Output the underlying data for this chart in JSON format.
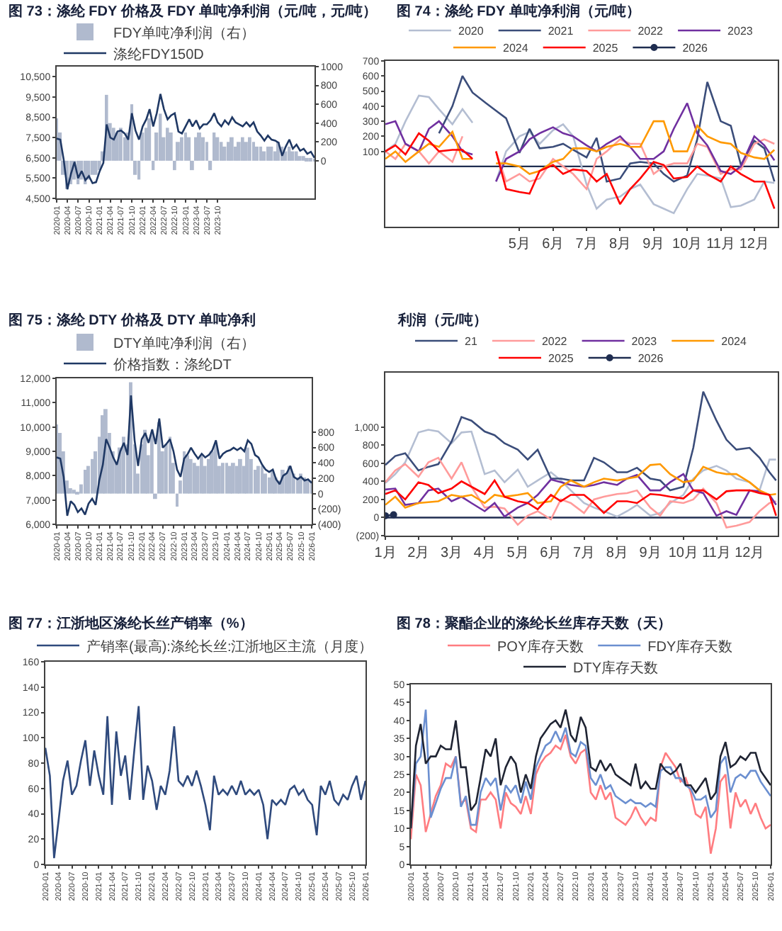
{
  "chart_data": [
    {
      "type": "line",
      "title": "图 73：涤纶 FDY 价格及 FDY 单吨净利润（元/吨，元/吨）",
      "legend": "top left",
      "x": [
        "2020-01",
        "2020-02",
        "2020-03",
        "2020-04",
        "2020-05",
        "2020-06",
        "2020-07",
        "2020-08",
        "2020-09",
        "2020-10",
        "2020-11",
        "2020-12",
        "2021-01",
        "2021-02",
        "2021-03",
        "2021-04",
        "2021-05",
        "2021-06",
        "2021-07",
        "2021-08",
        "2021-09",
        "2021-10",
        "2021-11",
        "2021-12",
        "2022-01",
        "2022-02",
        "2022-03",
        "2022-04",
        "2022-05",
        "2022-06",
        "2022-07",
        "2022-08",
        "2022-09",
        "2022-10",
        "2022-11",
        "2022-12",
        "2023-01",
        "2023-02",
        "2023-03",
        "2023-04",
        "2023-05",
        "2023-06",
        "2023-07",
        "2023-08",
        "2023-09",
        "2023-10",
        "2023-11",
        "2023-12",
        "2024-01",
        "2024-02",
        "2024-03",
        "2024-04",
        "2024-05",
        "2024-06",
        "2024-07",
        "2024-08",
        "2024-09",
        "2024-10",
        "2024-11",
        "2024-12",
        "2025-01",
        "2025-02",
        "2025-03",
        "2025-04",
        "2025-05",
        "2025-06",
        "2025-07",
        "2025-08",
        "2025-09",
        "2025-10",
        "2025-11",
        "2025-12",
        "2026-01"
      ],
      "xlim": [
        "2020-01",
        "2026-01"
      ],
      "xticks": [
        "2020-01",
        "2020-04",
        "2020-07",
        "2020-10",
        "2021-01",
        "2021-04",
        "2021-07",
        "2021-10",
        "2022-01",
        "2022-04",
        "2022-07",
        "2022-10",
        "2023-01",
        "2023-04",
        "2023-07",
        "2023-10"
      ],
      "ylim": [
        4500,
        11000
      ],
      "yticks": [
        {
          "value": 4500,
          "label": "4,500"
        },
        {
          "value": 5500,
          "label": "5,500"
        },
        {
          "value": 6500,
          "label": "6,500"
        },
        {
          "value": 7500,
          "label": "7,500"
        },
        {
          "value": 8500,
          "label": "8,500"
        },
        {
          "value": 9500,
          "label": "9,500"
        },
        {
          "value": 10500,
          "label": "10,500"
        }
      ],
      "y2lim": [
        -400,
        1000
      ],
      "y2ticks": [
        0,
        200,
        400,
        600,
        800,
        1000
      ],
      "series": [
        {
          "name": "FDY单吨净利润（右）",
          "type": "bar",
          "axis": "y2",
          "color": "#b0bace",
          "values": [
            450,
            300,
            -150,
            -300,
            -250,
            -200,
            -250,
            -200,
            -250,
            -200,
            -150,
            -150,
            -100,
            100,
            700,
            400,
            350,
            300,
            350,
            250,
            300,
            600,
            -150,
            -200,
            300,
            350,
            450,
            -100,
            300,
            500,
            250,
            350,
            300,
            -100,
            200,
            250,
            300,
            250,
            -100,
            250,
            300,
            250,
            200,
            -100,
            300,
            250,
            200,
            150,
            200,
            250,
            150,
            200,
            250,
            200,
            250,
            200,
            150,
            150,
            100,
            150,
            150,
            100,
            200,
            150,
            100,
            150,
            100,
            100,
            50,
            50,
            30,
            30,
            20
          ]
        },
        {
          "name": "涤纶FDY150D",
          "color": "#1f3864",
          "values": [
            7450,
            7400,
            6400,
            4950,
            5700,
            6300,
            5500,
            5850,
            5400,
            5600,
            5250,
            5300,
            5850,
            6250,
            8150,
            7500,
            7400,
            7800,
            7850,
            7700,
            7400,
            8700,
            7850,
            7400,
            8050,
            8400,
            8900,
            8050,
            8700,
            9650,
            8900,
            8400,
            8600,
            8700,
            7800,
            7700,
            8050,
            8400,
            8050,
            8350,
            7950,
            8150,
            8150,
            8350,
            8700,
            8250,
            8050,
            8350,
            8150,
            8500,
            8250,
            8150,
            8050,
            8250,
            8050,
            8250,
            7800,
            7600,
            7350,
            7600,
            7400,
            7350,
            7250,
            6600,
            7050,
            7400,
            6950,
            7150,
            6850,
            6950,
            6700,
            6800,
            6500
          ]
        }
      ]
    },
    {
      "type": "line",
      "title": "图 74：涤纶 FDY 单吨净利润（元/吨）",
      "legend": "top",
      "x": [
        1,
        1.3,
        1.6,
        2,
        2.3,
        2.6,
        3,
        3.3,
        3.6,
        4,
        4.3,
        4.6,
        5,
        5.3,
        5.6,
        6,
        6.3,
        6.6,
        7,
        7.3,
        7.6,
        8,
        8.3,
        8.6,
        9,
        9.3,
        9.6,
        10,
        10.3,
        10.6,
        11,
        11.3,
        11.6,
        12,
        12.3,
        12.6
      ],
      "xlim": [
        1,
        12.7
      ],
      "xticks": [
        {
          "value": 5,
          "label": "5月"
        },
        {
          "value": 6,
          "label": "6月"
        },
        {
          "value": 7,
          "label": "7月"
        },
        {
          "value": 8,
          "label": "8月"
        },
        {
          "value": 9,
          "label": "9月"
        },
        {
          "value": 10,
          "label": "10月"
        },
        {
          "value": 11,
          "label": "11月"
        },
        {
          "value": 12,
          "label": "12月"
        }
      ],
      "ylim": [
        -400,
        700
      ],
      "yticks": [
        100,
        200,
        300,
        400,
        500,
        600,
        700
      ],
      "ref_lines": [
        {
          "axis": "y",
          "value": 0,
          "color": "#1f2d50"
        }
      ],
      "series": [
        {
          "name": "2020",
          "color": "#b4bed2",
          "values": [
            100,
            150,
            300,
            470,
            460,
            380,
            280,
            380,
            290,
            null,
            -100,
            100,
            200,
            230,
            150,
            240,
            280,
            200,
            -120,
            -280,
            -220,
            -200,
            -150,
            -120,
            -250,
            -280,
            -310,
            -150,
            -50,
            -60,
            -80,
            -270,
            -260,
            -220,
            -100,
            -110
          ]
        },
        {
          "name": "2021",
          "color": "#3b4d7a",
          "values": [
            null,
            null,
            null,
            null,
            null,
            220,
            400,
            600,
            490,
            420,
            370,
            320,
            90,
            250,
            120,
            130,
            150,
            110,
            60,
            190,
            -100,
            -80,
            20,
            30,
            20,
            -50,
            -100,
            -60,
            180,
            560,
            300,
            270,
            10,
            170,
            120,
            -100
          ]
        },
        {
          "name": "2022",
          "color": "#ff9b9b",
          "values": [
            100,
            50,
            150,
            100,
            20,
            100,
            30,
            200,
            null,
            null,
            100,
            -100,
            -50,
            -100,
            -80,
            50,
            0,
            -50,
            -150,
            50,
            100,
            180,
            150,
            150,
            -50,
            0,
            20,
            20,
            150,
            130,
            -50,
            -20,
            -20,
            150,
            180,
            150
          ]
        },
        {
          "name": "2023",
          "color": "#7030a0",
          "values": [
            280,
            300,
            150,
            100,
            250,
            300,
            200,
            100,
            80,
            null,
            -100,
            50,
            100,
            180,
            220,
            260,
            220,
            200,
            140,
            100,
            150,
            200,
            130,
            50,
            50,
            100,
            250,
            420,
            220,
            140,
            -30,
            -50,
            0,
            200,
            140,
            40
          ]
        },
        {
          "name": "2024",
          "color": "#ff9900",
          "values": [
            50,
            100,
            30,
            100,
            150,
            130,
            230,
            50,
            50,
            null,
            20,
            20,
            0,
            -50,
            -30,
            30,
            50,
            120,
            120,
            100,
            130,
            150,
            130,
            130,
            300,
            300,
            100,
            100,
            270,
            200,
            160,
            150,
            90,
            60,
            50,
            110
          ]
        },
        {
          "name": "2025",
          "color": "#ff0000",
          "values": [
            100,
            140,
            80,
            220,
            170,
            100,
            110,
            110,
            50,
            null,
            100,
            -150,
            -170,
            -180,
            -30,
            10,
            -50,
            -20,
            -30,
            -100,
            -50,
            -250,
            -150,
            -80,
            30,
            10,
            -80,
            -70,
            0,
            -50,
            -100,
            0,
            -50,
            -100,
            -100,
            -280
          ]
        },
        {
          "name": "2026",
          "color": "#1f2d50",
          "marker": "circle",
          "values": [
            null,
            null,
            null,
            null,
            null,
            null,
            null,
            null,
            null,
            null,
            null,
            null,
            null,
            null,
            null,
            null,
            null,
            null,
            null,
            null,
            null,
            null,
            null,
            null,
            null,
            null,
            null,
            null,
            null,
            null,
            null,
            null,
            null,
            null,
            null,
            null
          ]
        }
      ]
    },
    {
      "type": "line",
      "title": "图 75：涤纶 DTY 价格及 DTY 单吨净利",
      "legend": "top left",
      "x": [
        "2020-01",
        "2020-02",
        "2020-03",
        "2020-04",
        "2020-05",
        "2020-06",
        "2020-07",
        "2020-08",
        "2020-09",
        "2020-10",
        "2020-11",
        "2020-12",
        "2021-01",
        "2021-02",
        "2021-03",
        "2021-04",
        "2021-05",
        "2021-06",
        "2021-07",
        "2021-08",
        "2021-09",
        "2021-10",
        "2021-11",
        "2021-12",
        "2022-01",
        "2022-02",
        "2022-03",
        "2022-04",
        "2022-05",
        "2022-06",
        "2022-07",
        "2022-08",
        "2022-09",
        "2022-10",
        "2022-11",
        "2022-12",
        "2023-01",
        "2023-02",
        "2023-03",
        "2023-04",
        "2023-05",
        "2023-06",
        "2023-07",
        "2023-08",
        "2023-09",
        "2023-10",
        "2023-11",
        "2023-12",
        "2024-01",
        "2024-02",
        "2024-03",
        "2024-04",
        "2024-05",
        "2024-06",
        "2024-07",
        "2024-08",
        "2024-09",
        "2024-10",
        "2024-11",
        "2024-12",
        "2025-01",
        "2025-02",
        "2025-03",
        "2025-04",
        "2025-05",
        "2025-06",
        "2025-07",
        "2025-08",
        "2025-09",
        "2025-10",
        "2025-11",
        "2025-12",
        "2026-01"
      ],
      "xlim": [
        "2020-01",
        "2026-01"
      ],
      "xticks": [
        "2020-01",
        "2020-04",
        "2020-07",
        "2020-10",
        "2021-01",
        "2021-04",
        "2021-07",
        "2021-10",
        "2022-01",
        "2022-04",
        "2022-07",
        "2022-10",
        "2023-01",
        "2023-04",
        "2023-07",
        "2023-10",
        "2024-01",
        "2024-04",
        "2024-07",
        "2024-10",
        "2025-01",
        "2025-04",
        "2025-07",
        "2025-10",
        "2026-01"
      ],
      "ylim": [
        6000,
        12000
      ],
      "yticks": [
        {
          "value": 6000,
          "label": "6,000"
        },
        {
          "value": 7000,
          "label": "7,000"
        },
        {
          "value": 8000,
          "label": "8,000"
        },
        {
          "value": 9000,
          "label": "9,000"
        },
        {
          "value": 10000,
          "label": "10,000"
        },
        {
          "value": 11000,
          "label": "11,000"
        },
        {
          "value": 12000,
          "label": "12,000"
        }
      ],
      "y2lim": [
        -400,
        1500
      ],
      "y2ticks": [
        {
          "value": -400,
          "label": "(400)"
        },
        {
          "value": -200,
          "label": "(200)"
        },
        0,
        200,
        400,
        600,
        800
      ],
      "series": [
        {
          "name": "DTY单吨净利润（右）",
          "type": "bar",
          "axis": "y2",
          "color": "#b0bace",
          "values": [
            900,
            790,
            550,
            170,
            70,
            50,
            20,
            120,
            310,
            360,
            450,
            550,
            740,
            1020,
            1100,
            790,
            550,
            400,
            600,
            740,
            640,
            1450,
            640,
            260,
            640,
            830,
            500,
            790,
            -70,
            930,
            550,
            640,
            740,
            400,
            -170,
            170,
            550,
            500,
            450,
            400,
            360,
            500,
            360,
            450,
            550,
            640,
            360,
            400,
            400,
            360,
            400,
            360,
            450,
            360,
            600,
            450,
            310,
            360,
            360,
            260,
            210,
            310,
            210,
            170,
            310,
            260,
            360,
            260,
            210,
            260,
            210,
            170,
            170
          ]
        },
        {
          "name": "价格指数：涤纶DT",
          "color": "#1f3864",
          "values": [
            8750,
            8700,
            7950,
            6350,
            6950,
            6800,
            6500,
            6650,
            6400,
            6850,
            7050,
            6800,
            7800,
            8450,
            9500,
            9150,
            8750,
            8450,
            9000,
            9350,
            8850,
            11300,
            9450,
            8400,
            9500,
            9750,
            9350,
            9900,
            9300,
            10350,
            9150,
            9300,
            9500,
            9000,
            8250,
            7950,
            8700,
            8900,
            9150,
            8900,
            8700,
            8900,
            8750,
            8850,
            9050,
            9450,
            8700,
            8900,
            9000,
            9050,
            9150,
            9050,
            9150,
            9000,
            9450,
            9300,
            8850,
            8750,
            8450,
            8250,
            8150,
            8250,
            7850,
            7650,
            8000,
            8100,
            8400,
            7950,
            7850,
            7950,
            7800,
            7850,
            7700
          ]
        }
      ]
    },
    {
      "type": "line",
      "title": "利润（元/吨）",
      "legend": "top",
      "x": [
        1,
        1.3,
        1.6,
        2,
        2.3,
        2.6,
        3,
        3.3,
        3.6,
        4,
        4.3,
        4.6,
        5,
        5.3,
        5.6,
        6,
        6.3,
        6.6,
        7,
        7.3,
        7.6,
        8,
        8.3,
        8.6,
        9,
        9.3,
        9.6,
        10,
        10.3,
        10.6,
        11,
        11.3,
        11.6,
        12,
        12.3,
        12.6,
        12.8
      ],
      "xlim": [
        1,
        12.85
      ],
      "xticks": [
        {
          "value": 1,
          "label": "1月"
        },
        {
          "value": 2,
          "label": "2月"
        },
        {
          "value": 3,
          "label": "3月"
        },
        {
          "value": 4,
          "label": "4月"
        },
        {
          "value": 5,
          "label": "5月"
        },
        {
          "value": 6,
          "label": "6月"
        },
        {
          "value": 7,
          "label": "7月"
        },
        {
          "value": 8,
          "label": "8月"
        },
        {
          "value": 9,
          "label": "9月"
        },
        {
          "value": 10,
          "label": "10月"
        },
        {
          "value": 11,
          "label": "11月"
        },
        {
          "value": 12,
          "label": "12月"
        }
      ],
      "ylim": [
        -200,
        1600
      ],
      "yticks": [
        {
          "value": -200,
          "label": "(200)"
        },
        0,
        200,
        400,
        600,
        800,
        {
          "value": 1000,
          "label": "1,000"
        }
      ],
      "ref_lines": [
        {
          "axis": "y",
          "value": 0,
          "color": "#1f2d50"
        }
      ],
      "series": [
        {
          "color": "#b4bed2",
          "values": [
            380,
            480,
            610,
            940,
            970,
            950,
            820,
            940,
            950,
            480,
            520,
            390,
            530,
            340,
            410,
            500,
            410,
            300,
            160,
            110,
            70,
            10,
            70,
            140,
            20,
            50,
            160,
            250,
            430,
            520,
            570,
            520,
            430,
            390,
            300,
            640,
            640
          ]
        },
        {
          "name": "21",
          "color": "#3b4d7a",
          "values": [
            580,
            680,
            710,
            520,
            560,
            590,
            840,
            1110,
            1070,
            950,
            910,
            820,
            750,
            640,
            750,
            430,
            430,
            410,
            410,
            660,
            610,
            500,
            500,
            550,
            430,
            410,
            300,
            340,
            770,
            1390,
            1070,
            860,
            750,
            770,
            660,
            500,
            410
          ]
        },
        {
          "name": "2022",
          "color": "#ff9b9b",
          "values": [
            390,
            520,
            590,
            450,
            610,
            660,
            430,
            610,
            340,
            110,
            120,
            100,
            -80,
            20,
            70,
            -20,
            200,
            160,
            50,
            200,
            230,
            260,
            270,
            300,
            110,
            20,
            180,
            160,
            200,
            320,
            160,
            -110,
            -90,
            -50,
            70,
            160,
            180
          ]
        },
        {
          "name": "2023",
          "color": "#7030a0",
          "values": [
            310,
            320,
            140,
            160,
            300,
            320,
            180,
            230,
            160,
            70,
            160,
            10,
            110,
            160,
            250,
            420,
            390,
            360,
            340,
            360,
            390,
            360,
            430,
            470,
            300,
            300,
            390,
            480,
            300,
            270,
            20,
            70,
            30,
            300,
            290,
            250,
            140
          ]
        },
        {
          "name": "2024",
          "color": "#ff9900",
          "values": [
            140,
            230,
            110,
            160,
            170,
            180,
            250,
            230,
            250,
            160,
            250,
            230,
            250,
            270,
            160,
            180,
            340,
            410,
            340,
            390,
            430,
            410,
            430,
            450,
            580,
            590,
            480,
            390,
            410,
            560,
            500,
            480,
            480,
            390,
            300,
            250,
            260
          ]
        },
        {
          "name": "2025",
          "color": "#ff0000",
          "values": [
            260,
            300,
            200,
            390,
            360,
            270,
            320,
            400,
            340,
            260,
            410,
            230,
            180,
            160,
            90,
            250,
            180,
            250,
            250,
            160,
            50,
            180,
            180,
            160,
            260,
            250,
            230,
            210,
            300,
            300,
            200,
            290,
            300,
            300,
            270,
            250,
            20
          ]
        },
        {
          "name": "2026",
          "color": "#1f2d50",
          "marker": "circle",
          "x": [
            1,
            1.25
          ],
          "values": [
            20,
            30
          ]
        }
      ]
    },
    {
      "type": "line",
      "title": "图 77：江浙地区涤纶长丝产销率（%）",
      "legend": "top",
      "x": [
        "2020-01",
        "2020-02",
        "2020-03",
        "2020-04",
        "2020-05",
        "2020-06",
        "2020-07",
        "2020-08",
        "2020-09",
        "2020-10",
        "2020-11",
        "2020-12",
        "2021-01",
        "2021-02",
        "2021-03",
        "2021-04",
        "2021-05",
        "2021-06",
        "2021-07",
        "2021-08",
        "2021-09",
        "2021-10",
        "2021-11",
        "2021-12",
        "2022-01",
        "2022-02",
        "2022-03",
        "2022-04",
        "2022-05",
        "2022-06",
        "2022-07",
        "2022-08",
        "2022-09",
        "2022-10",
        "2022-11",
        "2022-12",
        "2023-01",
        "2023-02",
        "2023-03",
        "2023-04",
        "2023-05",
        "2023-06",
        "2023-07",
        "2023-08",
        "2023-09",
        "2023-10",
        "2023-11",
        "2023-12",
        "2024-01",
        "2024-02",
        "2024-03",
        "2024-04",
        "2024-05",
        "2024-06",
        "2024-07",
        "2024-08",
        "2024-09",
        "2024-10",
        "2024-11",
        "2024-12",
        "2025-01",
        "2025-02",
        "2025-03",
        "2025-04",
        "2025-05",
        "2025-06",
        "2025-07",
        "2025-08",
        "2025-09",
        "2025-10",
        "2025-11",
        "2025-12",
        "2026-01"
      ],
      "xlim": [
        "2020-01",
        "2026-01"
      ],
      "xticks": [
        "2020-01",
        "2020-04",
        "2020-07",
        "2020-10",
        "2021-01",
        "2021-04",
        "2021-07",
        "2021-10",
        "2022-01",
        "2022-04",
        "2022-07",
        "2022-10",
        "2023-01",
        "2023-04",
        "2023-07",
        "2023-10",
        "2024-01",
        "2024-04",
        "2024-07",
        "2024-10",
        "2025-01",
        "2025-04",
        "2025-07",
        "2025-10",
        "2026-01"
      ],
      "ylim": [
        0,
        160
      ],
      "yticks": [
        0,
        20,
        40,
        60,
        80,
        100,
        120,
        140,
        160
      ],
      "series": [
        {
          "name": "产销率(最高):涤纶长丝:江浙地区主流（月度）",
          "color": "#2f4a7d",
          "values": [
            92,
            70,
            5,
            35,
            66,
            82,
            55,
            62,
            82,
            98,
            62,
            90,
            70,
            55,
            117,
            47,
            105,
            70,
            86,
            51,
            90,
            125,
            51,
            78,
            66,
            43,
            62,
            55,
            74,
            109,
            66,
            62,
            70,
            62,
            74,
            62,
            47,
            27,
            70,
            55,
            59,
            55,
            62,
            55,
            66,
            55,
            59,
            55,
            59,
            47,
            20,
            51,
            47,
            51,
            47,
            59,
            62,
            55,
            59,
            51,
            47,
            23,
            62,
            55,
            66,
            51,
            47,
            55,
            51,
            62,
            70,
            51,
            66
          ]
        }
      ]
    },
    {
      "type": "line",
      "title": "图 78：聚酯企业的涤纶长丝库存天数（天）",
      "legend": "top",
      "x": [
        "2020-01",
        "2020-02",
        "2020-03",
        "2020-04",
        "2020-05",
        "2020-06",
        "2020-07",
        "2020-08",
        "2020-09",
        "2020-10",
        "2020-11",
        "2020-12",
        "2021-01",
        "2021-02",
        "2021-03",
        "2021-04",
        "2021-05",
        "2021-06",
        "2021-07",
        "2021-08",
        "2021-09",
        "2021-10",
        "2021-11",
        "2021-12",
        "2022-01",
        "2022-02",
        "2022-03",
        "2022-04",
        "2022-05",
        "2022-06",
        "2022-07",
        "2022-08",
        "2022-09",
        "2022-10",
        "2022-11",
        "2022-12",
        "2023-01",
        "2023-02",
        "2023-03",
        "2023-04",
        "2023-05",
        "2023-06",
        "2023-07",
        "2023-08",
        "2023-09",
        "2023-10",
        "2023-11",
        "2023-12",
        "2024-01",
        "2024-02",
        "2024-03",
        "2024-04",
        "2024-05",
        "2024-06",
        "2024-07",
        "2024-08",
        "2024-09",
        "2024-10",
        "2024-11",
        "2024-12",
        "2025-01",
        "2025-02",
        "2025-03",
        "2025-04",
        "2025-05",
        "2025-06",
        "2025-07",
        "2025-08",
        "2025-09",
        "2025-10",
        "2025-11",
        "2025-12",
        "2026-01"
      ],
      "xlim": [
        "2020-01",
        "2026-01"
      ],
      "xticks": [
        "2020-01",
        "2020-04",
        "2020-07",
        "2020-10",
        "2021-01",
        "2021-04",
        "2021-07",
        "2021-10",
        "2022-01",
        "2022-04",
        "2022-07",
        "2022-10",
        "2023-01",
        "2023-04",
        "2023-07",
        "2023-10",
        "2024-01",
        "2024-04",
        "2024-07",
        "2024-10",
        "2025-01",
        "2025-04",
        "2025-07",
        "2025-10",
        "2026-01"
      ],
      "ylim": [
        0,
        50
      ],
      "yticks": [
        0,
        5,
        10,
        15,
        20,
        25,
        30,
        35,
        40,
        45,
        50
      ],
      "series": [
        {
          "name": "POY库存天数",
          "color": "#ff7c80",
          "values": [
            7,
            25,
            22,
            9,
            14,
            19,
            22,
            28,
            27,
            30,
            17,
            18,
            10,
            9,
            18,
            18,
            20,
            18,
            10,
            20,
            17,
            16,
            14,
            19,
            14,
            25,
            28,
            30,
            31,
            33,
            32,
            36,
            30,
            28,
            31,
            32,
            20,
            18,
            22,
            18,
            20,
            13,
            12,
            11,
            13,
            16,
            13,
            11,
            13,
            12,
            27,
            31,
            29,
            27,
            23,
            24,
            20,
            14,
            13,
            16,
            3,
            10,
            23,
            25,
            10,
            20,
            16,
            18,
            14,
            17,
            13,
            10,
            11
          ]
        },
        {
          "name": "FDY库存天数",
          "color": "#6b8fd0",
          "values": [
            10,
            28,
            30,
            43,
            13,
            17,
            21,
            24,
            24,
            30,
            16,
            19,
            11,
            11,
            20,
            24,
            22,
            24,
            15,
            22,
            20,
            22,
            17,
            23,
            18,
            27,
            30,
            33,
            34,
            37,
            34,
            38,
            31,
            30,
            34,
            33,
            24,
            22,
            25,
            21,
            22,
            19,
            18,
            17,
            18,
            17,
            17,
            16,
            17,
            16,
            26,
            27,
            27,
            24,
            24,
            22,
            21,
            18,
            18,
            19,
            13,
            15,
            28,
            30,
            20,
            24,
            25,
            24,
            26,
            26,
            23,
            21,
            19
          ]
        },
        {
          "name": "DTY库存天数",
          "color": "#1f2433",
          "values": [
            10,
            33,
            39,
            28,
            30,
            30,
            33,
            32,
            32,
            40,
            27,
            27,
            15,
            17,
            24,
            32,
            30,
            35,
            22,
            27,
            30,
            28,
            20,
            25,
            21,
            30,
            35,
            37,
            39,
            40,
            38,
            43,
            36,
            34,
            41,
            38,
            27,
            26,
            29,
            26,
            28,
            25,
            24,
            23,
            22,
            28,
            21,
            23,
            21,
            21,
            28,
            26,
            25,
            26,
            28,
            22,
            22,
            20,
            22,
            24,
            18,
            20,
            30,
            34,
            27,
            28,
            30,
            29,
            31,
            31,
            26,
            24,
            22
          ]
        }
      ]
    }
  ]
}
